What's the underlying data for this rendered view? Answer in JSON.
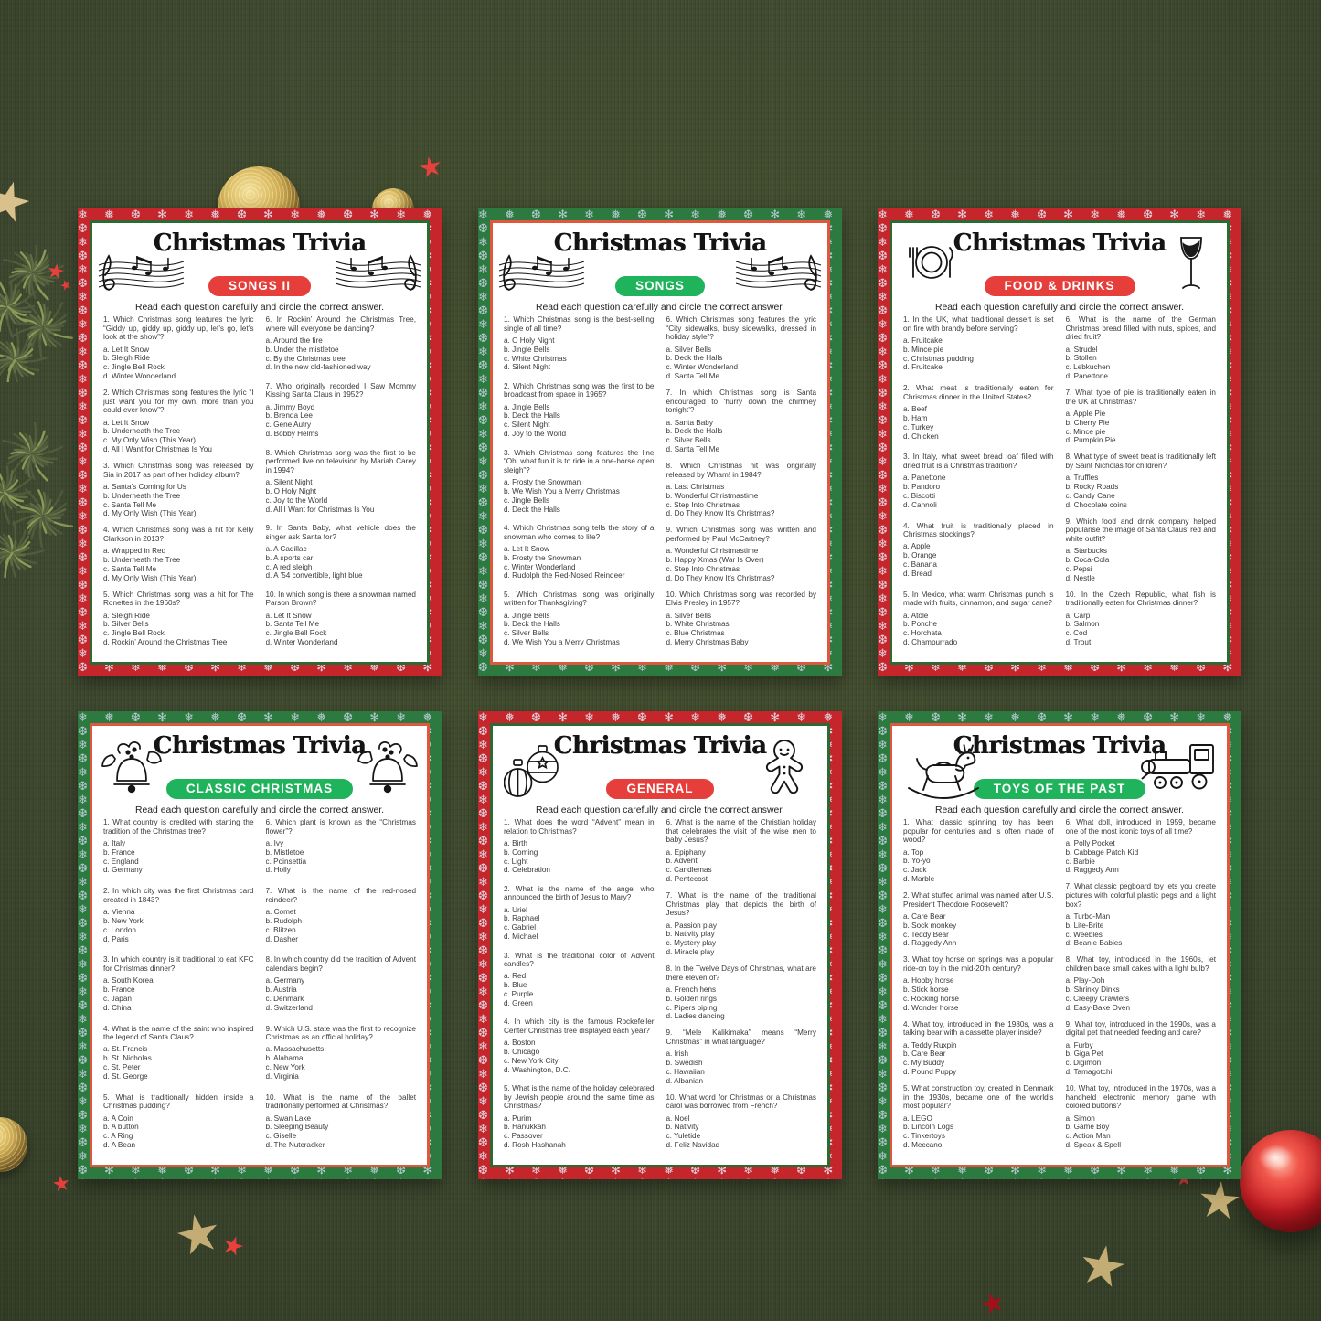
{
  "shared": {
    "title": "Christmas Trivia",
    "instruction": "Read each question carefully and circle the correct answer."
  },
  "colors": {
    "bg": "#404a31",
    "border_red": "#c5262c",
    "border_green": "#2c7a3f",
    "frame_green": "#2d6a33",
    "frame_red": "#e0573e",
    "pill_red": "#e63e3a",
    "pill_green": "#1fb35c",
    "text": "#3a3a3a",
    "gold": "#c9a552",
    "gold_star": "#c3ad74",
    "tan_star": "#d8c18b",
    "red_star": "#e8403c",
    "dark_red_star": "#a50f18",
    "red_ball": "#c71a22",
    "pine_green": "#55633c"
  },
  "decorations": [
    {
      "name": "gold-bauble-large",
      "color": "#c9a552"
    },
    {
      "name": "gold-bauble-small",
      "color": "#c9a552"
    },
    {
      "name": "gold-bauble-bottom-left",
      "color": "#c9a552"
    },
    {
      "name": "red-ornament-ball",
      "color": "#c71a22"
    },
    {
      "name": "pine-branch-upper",
      "color": "#55633c"
    },
    {
      "name": "pine-branch-lower",
      "color": "#55633c"
    },
    {
      "name": "red-stars",
      "color": "#e8403c"
    },
    {
      "name": "gold-stars",
      "color": "#c3ad74"
    },
    {
      "name": "dark-red-star",
      "color": "#a50f18"
    },
    {
      "name": "tan-star",
      "color": "#d8c18b"
    }
  ],
  "cards": [
    {
      "id": "songs-2",
      "category": "SONGS II",
      "theme": "red",
      "icon_left": "music-staff",
      "icon_right": "music-staff",
      "questions": [
        {
          "q": "1. Which Christmas song features the lyric “Giddy up, giddy up, giddy up, let’s go, let’s look at the show”?",
          "options": [
            "a. Let It Snow",
            "b. Sleigh Ride",
            "c. Jingle Bell Rock",
            "d. Winter Wonderland"
          ]
        },
        {
          "q": "2. Which Christmas song features the lyric “I just want you for my own, more than you could ever know”?",
          "options": [
            "a. Let It Snow",
            "b. Underneath the Tree",
            "c. My Only Wish (This Year)",
            "d. All I Want for Christmas Is You"
          ]
        },
        {
          "q": "3. Which Christmas song was released by Sia in 2017 as part of her holiday album?",
          "options": [
            "a. Santa’s Coming for Us",
            "b. Underneath the Tree",
            "c. Santa Tell Me",
            "d. My Only Wish (This Year)"
          ]
        },
        {
          "q": "4. Which Christmas song was a hit for Kelly Clarkson in 2013?",
          "options": [
            "a. Wrapped in Red",
            "b. Underneath the Tree",
            "c. Santa Tell Me",
            "d. My Only Wish (This Year)"
          ]
        },
        {
          "q": "5. Which Christmas song was a hit for The Ronettes in the 1960s?",
          "options": [
            "a. Sleigh Ride",
            "b. Silver Bells",
            "c. Jingle Bell Rock",
            "d. Rockin’ Around the Christmas Tree"
          ]
        },
        {
          "q": "6. In Rockin’ Around the Christmas Tree, where will everyone be dancing?",
          "options": [
            "a. Around the fire",
            "b. Under the mistletoe",
            "c. By the Christmas tree",
            "d. In the new old-fashioned way"
          ]
        },
        {
          "q": "7. Who originally recorded I Saw Mommy Kissing Santa Claus in 1952?",
          "options": [
            "a. Jimmy Boyd",
            "b. Brenda Lee",
            "c. Gene Autry",
            "d. Bobby Helms"
          ]
        },
        {
          "q": "8. Which Christmas song was the first to be performed live on television by Mariah Carey in 1994?",
          "options": [
            "a. Silent Night",
            "b. O Holy Night",
            "c. Joy to the World",
            "d. All I Want for Christmas Is You"
          ]
        },
        {
          "q": "9. In Santa Baby, what vehicle does the singer ask Santa for?",
          "options": [
            "a. A Cadillac",
            "b. A sports car",
            "c. A red sleigh",
            "d. A ’54 convertible, light blue"
          ]
        },
        {
          "q": "10. In which song is there a snowman named Parson Brown?",
          "options": [
            "a. Let It Snow",
            "b. Santa Tell Me",
            "c. Jingle Bell Rock",
            "d. Winter Wonderland"
          ]
        }
      ]
    },
    {
      "id": "songs",
      "category": "SONGS",
      "theme": "green",
      "icon_left": "music-staff",
      "icon_right": "music-staff",
      "questions": [
        {
          "q": "1. Which Christmas song is the best-selling single of all time?",
          "options": [
            "a. O Holy Night",
            "b. Jingle Bells",
            "c. White Christmas",
            "d. Silent Night"
          ]
        },
        {
          "q": "2. Which Christmas song was the first to be broadcast from space in 1965?",
          "options": [
            "a. Jingle Bells",
            "b. Deck the Halls",
            "c. Silent Night",
            "d. Joy to the World"
          ]
        },
        {
          "q": "3. Which Christmas song features the line “Oh, what fun it is to ride in a one-horse open sleigh”?",
          "options": [
            "a. Frosty the Snowman",
            "b. We Wish You a Merry Christmas",
            "c. Jingle Bells",
            "d. Deck the Halls"
          ]
        },
        {
          "q": "4. Which Christmas song tells the story of a snowman who comes to life?",
          "options": [
            "a. Let It Snow",
            "b. Frosty the Snowman",
            "c. Winter Wonderland",
            "d. Rudolph the Red-Nosed Reindeer"
          ]
        },
        {
          "q": "5. Which Christmas song was originally written for Thanksgiving?",
          "options": [
            "a. Jingle Bells",
            "b. Deck the Halls",
            "c. Silver Bells",
            "d. We Wish You a Merry Christmas"
          ]
        },
        {
          "q": "6. Which Christmas song features the lyric “City sidewalks, busy sidewalks, dressed in holiday style”?",
          "options": [
            "a. Silver Bells",
            "b. Deck the Halls",
            "c. Winter Wonderland",
            "d. Santa Tell Me"
          ]
        },
        {
          "q": "7. In which Christmas song is Santa encouraged to ‘hurry down the chimney tonight’?",
          "options": [
            "a. Santa Baby",
            "b. Deck the Halls",
            "c. Silver Bells",
            "d. Santa Tell Me"
          ]
        },
        {
          "q": "8. Which Christmas hit was originally released by Wham! in 1984?",
          "options": [
            "a. Last Christmas",
            "b. Wonderful Christmastime",
            "c. Step Into Christmas",
            "d. Do They Know It’s Christmas?"
          ]
        },
        {
          "q": "9. Which Christmas song was written and performed by Paul McCartney?",
          "options": [
            "a. Wonderful Christmastime",
            "b. Happy Xmas (War Is Over)",
            "c. Step Into Christmas",
            "d. Do They Know It’s Christmas?"
          ]
        },
        {
          "q": "10. Which Christmas song was recorded by Elvis Presley in 1957?",
          "options": [
            "a. Silver Bells",
            "b. White Christmas",
            "c. Blue Christmas",
            "d. Merry Christmas Baby"
          ]
        }
      ]
    },
    {
      "id": "food-drinks",
      "category": "FOOD & DRINKS",
      "theme": "red",
      "icon_left": "plate-cutlery",
      "icon_right": "wine-glass",
      "questions": [
        {
          "q": "1. In the UK, what traditional dessert is set on fire with brandy before serving?",
          "options": [
            "a. Fruitcake",
            "b. Mince pie",
            "c. Christmas pudding",
            "d. Fruitcake"
          ]
        },
        {
          "q": "2. What meat is traditionally eaten for Christmas dinner in the United States?",
          "options": [
            "a. Beef",
            "b. Ham",
            "c. Turkey",
            "d. Chicken"
          ]
        },
        {
          "q": "3. In Italy, what sweet bread loaf filled with dried fruit is a Christmas tradition?",
          "options": [
            "a. Panettone",
            "b. Pandoro",
            "c. Biscotti",
            "d. Cannoli"
          ]
        },
        {
          "q": "4. What fruit is traditionally placed in Christmas stockings?",
          "options": [
            "a. Apple",
            "b. Orange",
            "c. Banana",
            "d. Bread"
          ]
        },
        {
          "q": "5. In Mexico, what warm Christmas punch is made with fruits, cinnamon, and sugar cane?",
          "options": [
            "a. Atole",
            "b. Ponche",
            "c. Horchata",
            "d. Champurrado"
          ]
        },
        {
          "q": "6. What is the name of the German Christmas bread filled with nuts, spices, and dried fruit?",
          "options": [
            "a. Strudel",
            "b. Stollen",
            "c. Lebkuchen",
            "d. Panettone"
          ]
        },
        {
          "q": "7. What type of pie is traditionally eaten in the UK at Christmas?",
          "options": [
            "a. Apple Pie",
            "b. Cherry Pie",
            "c. Mince pie",
            "d. Pumpkin Pie"
          ]
        },
        {
          "q": "8. What type of sweet treat is traditionally left by Saint Nicholas for children?",
          "options": [
            "a. Truffles",
            "b. Rocky Roads",
            "c. Candy Cane",
            "d. Chocolate coins"
          ]
        },
        {
          "q": "9. Which food and drink company helped popularise the image of Santa Claus’ red and white outfit?",
          "options": [
            "a. Starbucks",
            "b. Coca-Cola",
            "c. Pepsi",
            "d. Nestle"
          ]
        },
        {
          "q": "10. In the Czech Republic, what fish is traditionally eaten for Christmas dinner?",
          "options": [
            "a. Carp",
            "b. Salmon",
            "c. Cod",
            "d. Trout"
          ]
        }
      ]
    },
    {
      "id": "classic-christmas",
      "category": "CLASSIC CHRISTMAS",
      "theme": "green",
      "icon_left": "bell-holly",
      "icon_right": "bell-holly",
      "questions": [
        {
          "q": "1. What country is credited with starting the tradition of the Christmas tree?",
          "options": [
            "a. Italy",
            "b. France",
            "c. England",
            "d. Germany"
          ]
        },
        {
          "q": "2. In which city was the first Christmas card created in 1843?",
          "options": [
            "a. Vienna",
            "b. New York",
            "c. London",
            "d. Paris"
          ]
        },
        {
          "q": "3. In which country is it traditional to eat KFC for Christmas dinner?",
          "options": [
            "a. South Korea",
            "b. France",
            "c. Japan",
            "d. China"
          ]
        },
        {
          "q": "4. What is the name of the saint who inspired the legend of Santa Claus?",
          "options": [
            "a. St. Francis",
            "b. St. Nicholas",
            "c. St. Peter",
            "d. St. George"
          ]
        },
        {
          "q": "5. What is traditionally hidden inside a Christmas pudding?",
          "options": [
            "a. A Coin",
            "b. A button",
            "c. A Ring",
            "d. A Bean"
          ]
        },
        {
          "q": "6. Which plant is known as the “Christmas flower”?",
          "options": [
            "a. Ivy",
            "b. Mistletoe",
            "c. Poinsettia",
            "d. Holly"
          ]
        },
        {
          "q": "7. What is the name of the red-nosed reindeer?",
          "options": [
            "a. Comet",
            "b. Rudolph",
            "c. Blitzen",
            "d. Dasher"
          ]
        },
        {
          "q": "8. In which country did the tradition of Advent calendars begin?",
          "options": [
            "a. Germany",
            "b. Austria",
            "c. Denmark",
            "d. Switzerland"
          ]
        },
        {
          "q": "9. Which U.S. state was the first to recognize Christmas as an official holiday?",
          "options": [
            "a. Massachusetts",
            "b. Alabama",
            "c. New York",
            "d. Virginia"
          ]
        },
        {
          "q": "10. What is the name of the ballet traditionally performed at Christmas?",
          "options": [
            "a. Swan Lake",
            "b. Sleeping Beauty",
            "c. Giselle",
            "d. The Nutcracker"
          ]
        }
      ]
    },
    {
      "id": "general",
      "category": "GENERAL",
      "theme": "red",
      "icon_left": "ornaments",
      "icon_right": "gingerbread-man",
      "questions": [
        {
          "q": "1. What does the word “Advent” mean in relation to Christmas?",
          "options": [
            "a. Birth",
            "b. Coming",
            "c. Light",
            "d. Celebration"
          ]
        },
        {
          "q": "2. What is the name of the angel who announced the birth of Jesus to Mary?",
          "options": [
            "a. Uriel",
            "b. Raphael",
            "c. Gabriel",
            "d. Michael"
          ]
        },
        {
          "q": "3. What is the traditional color of Advent candles?",
          "options": [
            "a. Red",
            "b. Blue",
            "c. Purple",
            "d. Green"
          ]
        },
        {
          "q": "4. In which city is the famous Rockefeller Center Christmas tree displayed each year?",
          "options": [
            "a. Boston",
            "b. Chicago",
            "c. New York City",
            "d. Washington, D.C."
          ]
        },
        {
          "q": "5. What is the name of the holiday celebrated by Jewish people around the same time as Christmas?",
          "options": [
            "a. Purim",
            "b. Hanukkah",
            "c. Passover",
            "d. Rosh Hashanah"
          ]
        },
        {
          "q": "6. What is the name of the Christian holiday that celebrates the visit of the wise men to baby Jesus?",
          "options": [
            "a. Epiphany",
            "b. Advent",
            "c. Candlemas",
            "d. Pentecost"
          ]
        },
        {
          "q": "7. What is the name of the traditional Christmas play that depicts the birth of Jesus?",
          "options": [
            "a. Passion play",
            "b. Nativity play",
            "c. Mystery play",
            "d. Miracle play"
          ]
        },
        {
          "q": "8. In the Twelve Days of Christmas, what are there eleven of?",
          "options": [
            "a. French hens",
            "b. Golden rings",
            "c. Pipers piping",
            "d. Ladies dancing"
          ]
        },
        {
          "q": "9. “Mele Kalikimaka” means “Merry Christmas” in what language?",
          "options": [
            "a. Irish",
            "b. Swedish",
            "c. Hawaiian",
            "d. Albanian"
          ]
        },
        {
          "q": "10. What word for Christmas or a Christmas carol was borrowed from French?",
          "options": [
            "a. Noel",
            "b. Nativity",
            "c. Yuletide",
            "d. Feliz Navidad"
          ]
        }
      ]
    },
    {
      "id": "toys-of-the-past",
      "category": "TOYS OF THE PAST",
      "theme": "green",
      "icon_left": "rocking-horse",
      "icon_right": "toy-train",
      "questions": [
        {
          "q": "1. What classic spinning toy has been popular for centuries and is often made of wood?",
          "options": [
            "a. Top",
            "b. Yo-yo",
            "c. Jack",
            "d. Marble"
          ]
        },
        {
          "q": "2. What stuffed animal was named after U.S. President Theodore Roosevelt?",
          "options": [
            "a. Care Bear",
            "b. Sock monkey",
            "c. Teddy Bear",
            "d. Raggedy Ann"
          ]
        },
        {
          "q": "3. What toy horse on springs was a popular ride-on toy in the mid-20th century?",
          "options": [
            "a. Hobby horse",
            "b. Stick horse",
            "c. Rocking horse",
            "d. Wonder horse"
          ]
        },
        {
          "q": "4. What toy, introduced in the 1980s, was a talking bear with a cassette player inside?",
          "options": [
            "a. Teddy Ruxpin",
            "b. Care Bear",
            "c. My Buddy",
            "d. Pound Puppy"
          ]
        },
        {
          "q": "5. What construction toy, created in Denmark in the 1930s, became one of the world’s most popular?",
          "options": [
            "a. LEGO",
            "b. Lincoln Logs",
            "c. Tinkertoys",
            "d. Meccano"
          ]
        },
        {
          "q": "6. What doll, introduced in 1959, became one of the most iconic toys of all time?",
          "options": [
            "a. Polly Pocket",
            "b. Cabbage Patch Kid",
            "c. Barbie",
            "d. Raggedy Ann"
          ]
        },
        {
          "q": "7. What classic pegboard toy lets you create pictures with colorful plastic pegs and a light box?",
          "options": [
            "a. Turbo-Man",
            "b. Lite-Brite",
            "c. Weebles",
            "d. Beanie Babies"
          ]
        },
        {
          "q": "8. What toy, introduced in the 1960s, let children bake small cakes with a light bulb?",
          "options": [
            "a. Play-Doh",
            "b. Shrinky Dinks",
            "c. Creepy Crawlers",
            "d. Easy-Bake Oven"
          ]
        },
        {
          "q": "9. What toy, introduced in the 1990s, was a digital pet that needed feeding and care?",
          "options": [
            "a. Furby",
            "b. Giga Pet",
            "c. Digimon",
            "d. Tamagotchi"
          ]
        },
        {
          "q": "10. What toy, introduced in the 1970s, was a handheld electronic memory game with colored buttons?",
          "options": [
            "a. Simon",
            "b. Game Boy",
            "c. Action Man",
            "d. Speak & Spell"
          ]
        }
      ]
    }
  ]
}
